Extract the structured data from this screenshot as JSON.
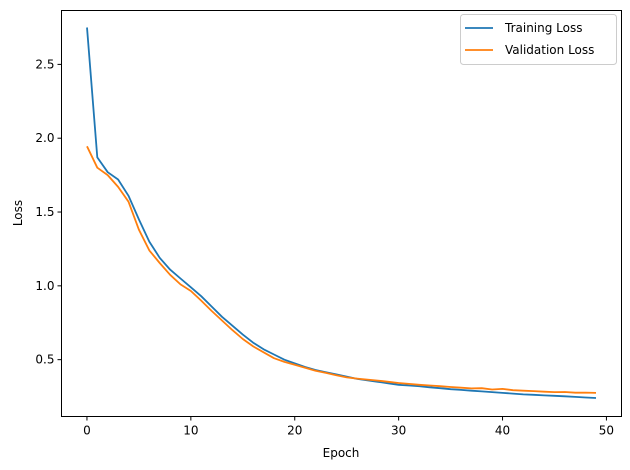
{
  "chart_data": {
    "type": "line",
    "title": "",
    "xlabel": "Epoch",
    "ylabel": "Loss",
    "xlim": [
      -2.45,
      51.45
    ],
    "ylim": [
      0.115,
      2.865
    ],
    "xticks": [
      0,
      10,
      20,
      30,
      40,
      50
    ],
    "xtick_labels": [
      "0",
      "10",
      "20",
      "30",
      "40",
      "50"
    ],
    "yticks": [
      0.5,
      1.0,
      1.5,
      2.0,
      2.5
    ],
    "ytick_labels": [
      "0.5",
      "1.0",
      "1.5",
      "2.0",
      "2.5"
    ],
    "grid": false,
    "legend_position": "upper right",
    "x": [
      0,
      1,
      2,
      3,
      4,
      5,
      6,
      7,
      8,
      9,
      10,
      11,
      12,
      13,
      14,
      15,
      16,
      17,
      18,
      19,
      20,
      21,
      22,
      23,
      24,
      25,
      26,
      27,
      28,
      29,
      30,
      31,
      32,
      33,
      34,
      35,
      36,
      37,
      38,
      39,
      40,
      41,
      42,
      43,
      44,
      45,
      46,
      47,
      48,
      49
    ],
    "series": [
      {
        "name": "Training Loss",
        "color": "#1f77b4",
        "values": [
          2.75,
          1.87,
          1.77,
          1.72,
          1.61,
          1.45,
          1.3,
          1.19,
          1.11,
          1.05,
          0.99,
          0.93,
          0.86,
          0.79,
          0.73,
          0.67,
          0.615,
          0.57,
          0.535,
          0.5,
          0.475,
          0.45,
          0.43,
          0.415,
          0.4,
          0.385,
          0.37,
          0.36,
          0.35,
          0.34,
          0.33,
          0.325,
          0.32,
          0.313,
          0.307,
          0.3,
          0.295,
          0.29,
          0.285,
          0.28,
          0.275,
          0.27,
          0.265,
          0.262,
          0.258,
          0.255,
          0.252,
          0.248,
          0.244,
          0.24
        ]
      },
      {
        "name": "Validation Loss",
        "color": "#ff7f0e",
        "values": [
          1.945,
          1.8,
          1.75,
          1.67,
          1.57,
          1.38,
          1.24,
          1.155,
          1.075,
          1.01,
          0.965,
          0.9,
          0.83,
          0.765,
          0.7,
          0.64,
          0.59,
          0.55,
          0.51,
          0.485,
          0.465,
          0.445,
          0.425,
          0.41,
          0.395,
          0.38,
          0.372,
          0.365,
          0.358,
          0.35,
          0.342,
          0.336,
          0.33,
          0.325,
          0.32,
          0.315,
          0.31,
          0.305,
          0.307,
          0.298,
          0.302,
          0.293,
          0.29,
          0.287,
          0.283,
          0.28,
          0.281,
          0.276,
          0.277,
          0.275
        ]
      }
    ]
  },
  "legend": {
    "items": [
      {
        "label": "Training Loss",
        "color": "#1f77b4"
      },
      {
        "label": "Validation Loss",
        "color": "#ff7f0e"
      }
    ]
  }
}
